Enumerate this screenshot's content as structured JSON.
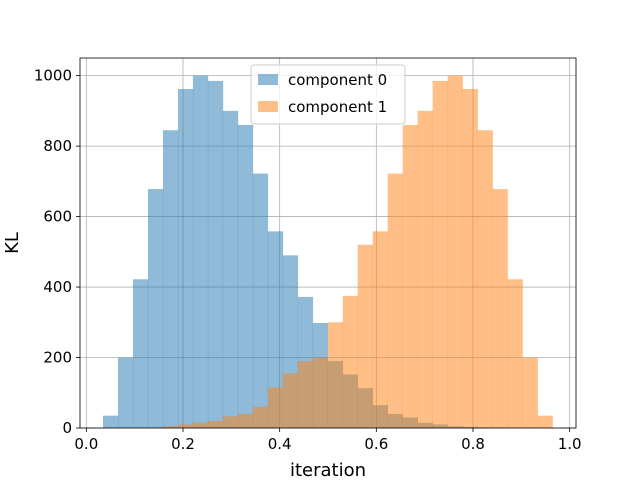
{
  "chart_data": {
    "type": "histogram",
    "xlabel": "iteration",
    "ylabel": "KL",
    "xlim": [
      -0.0131,
      1.0131
    ],
    "ylim": [
      0,
      1050
    ],
    "xticks": [
      0.0,
      0.2,
      0.4,
      0.6,
      0.8,
      1.0
    ],
    "xtick_labels": [
      "0.0",
      "0.2",
      "0.4",
      "0.6",
      "0.8",
      "1.0"
    ],
    "yticks": [
      0,
      200,
      400,
      600,
      800,
      1000
    ],
    "ytick_labels": [
      "0",
      "200",
      "400",
      "600",
      "800",
      "1000"
    ],
    "grid": true,
    "legend_position": "upper center",
    "bin_edges": [
      0.0345,
      0.0655,
      0.0965,
      0.1275,
      0.1585,
      0.1895,
      0.2205,
      0.2515,
      0.2825,
      0.3135,
      0.3445,
      0.3755,
      0.4065,
      0.4375,
      0.4685,
      0.4995,
      0.5305,
      0.5615,
      0.5925,
      0.6235,
      0.6545,
      0.6855,
      0.7165,
      0.7475,
      0.7785,
      0.8095,
      0.8405,
      0.8715,
      0.9025,
      0.9335,
      0.9645
    ],
    "series": [
      {
        "name": "component 0",
        "color": "#1f77b4",
        "alpha": 0.5,
        "counts": [
          35,
          200,
          422,
          678,
          845,
          962,
          1000,
          985,
          900,
          860,
          722,
          558,
          490,
          372,
          298,
          190,
          152,
          113,
          65,
          40,
          30,
          15,
          10,
          5,
          3,
          2,
          1,
          0,
          0,
          0
        ]
      },
      {
        "name": "component 1",
        "color": "#ff7f0e",
        "alpha": 0.5,
        "counts": [
          0,
          0,
          0,
          0,
          5,
          10,
          15,
          20,
          33,
          40,
          60,
          115,
          155,
          190,
          200,
          300,
          375,
          520,
          558,
          722,
          860,
          900,
          985,
          1000,
          962,
          845,
          678,
          422,
          200,
          35
        ]
      }
    ]
  }
}
